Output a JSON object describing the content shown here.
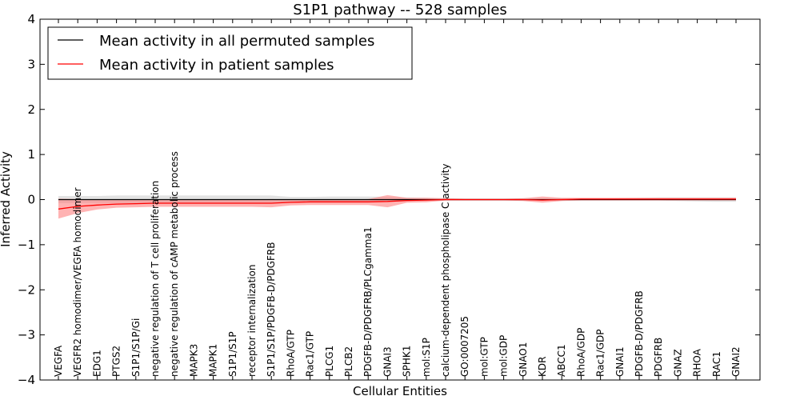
{
  "chart_data": {
    "type": "line",
    "title": "S1P1 pathway -- 528 samples",
    "xlabel": "Cellular Entities",
    "ylabel": "Inferred Activity",
    "ylim": [
      -4,
      4
    ],
    "yticks": [
      -4,
      -3,
      -2,
      -1,
      0,
      1,
      2,
      3,
      4
    ],
    "ytick_labels": [
      "−4",
      "−3",
      "−2",
      "−1",
      "0",
      "1",
      "2",
      "3",
      "4"
    ],
    "grid": false,
    "legend_position": "top-left",
    "categories": [
      "VEGFA",
      "VEGFR2 homodimer/VEGFA homodimer",
      "EDG1",
      "PTGS2",
      "S1P1/S1P/Gi",
      "negative regulation of T cell proliferation",
      "negative regulation of cAMP metabolic process",
      "MAPK3",
      "MAPK1",
      "S1P1/S1P",
      "receptor internalization",
      "S1P1/S1P/PDGFB-D/PDGFRB",
      "RhoA/GTP",
      "Rac1/GTP",
      "PLCG1",
      "PLCB2",
      "PDGFB-D/PDGFRB/PLCgamma1",
      "GNAI3",
      "SPHK1",
      "mol:S1P",
      "calcium-dependent phospholipase C activity",
      "GO:0007205",
      "mol:GTP",
      "mol:GDP",
      "GNAO1",
      "KDR",
      "ABCC1",
      "RhoA/GDP",
      "Rac1/GDP",
      "GNAI1",
      "PDGFB-D/PDGFRB",
      "PDGFRB",
      "GNAZ",
      "RHOA",
      "RAC1",
      "GNAI2"
    ],
    "series": [
      {
        "name": "Mean activity in all permuted samples",
        "color": "#000000",
        "band_color": "#bfbfbf",
        "values": [
          0,
          0,
          0,
          0,
          0,
          0,
          0,
          0,
          0,
          0,
          0,
          0,
          0,
          0,
          0,
          0,
          0,
          0,
          0,
          0,
          0,
          0,
          0,
          0,
          0,
          0,
          0,
          0,
          0,
          0,
          0,
          0,
          0,
          0,
          0,
          0
        ],
        "band_low": [
          -0.08,
          -0.08,
          -0.08,
          -0.08,
          -0.08,
          -0.08,
          -0.08,
          -0.08,
          -0.08,
          -0.08,
          -0.08,
          -0.08,
          -0.07,
          -0.07,
          -0.07,
          -0.07,
          -0.07,
          -0.05,
          -0.04,
          -0.03,
          -0.02,
          -0.02,
          -0.02,
          -0.02,
          -0.02,
          -0.02,
          -0.02,
          -0.02,
          -0.02,
          -0.02,
          -0.02,
          -0.02,
          -0.03,
          -0.04,
          -0.05,
          -0.05
        ],
        "band_high": [
          0.08,
          0.08,
          0.08,
          0.09,
          0.09,
          0.09,
          0.09,
          0.09,
          0.09,
          0.09,
          0.09,
          0.09,
          0.06,
          0.06,
          0.07,
          0.07,
          0.07,
          0.06,
          0.05,
          0.04,
          0.02,
          0.02,
          0.02,
          0.02,
          0.02,
          0.02,
          0.02,
          0.02,
          0.02,
          0.03,
          0.04,
          0.05,
          0.05,
          0.05,
          0.05,
          0.05
        ]
      },
      {
        "name": "Mean activity in patient samples",
        "color": "#ff0000",
        "band_color": "#ff8080",
        "values": [
          -0.21,
          -0.15,
          -0.12,
          -0.1,
          -0.09,
          -0.08,
          -0.08,
          -0.08,
          -0.08,
          -0.08,
          -0.08,
          -0.08,
          -0.06,
          -0.05,
          -0.05,
          -0.05,
          -0.05,
          -0.04,
          -0.02,
          -0.01,
          0.0,
          0.0,
          0.0,
          0.0,
          0.0,
          -0.01,
          0.0,
          0.01,
          0.01,
          0.01,
          0.01,
          0.01,
          0.01,
          0.01,
          0.01,
          0.01
        ],
        "band_low": [
          -0.42,
          -0.3,
          -0.22,
          -0.18,
          -0.17,
          -0.16,
          -0.16,
          -0.16,
          -0.16,
          -0.16,
          -0.16,
          -0.17,
          -0.13,
          -0.12,
          -0.12,
          -0.12,
          -0.12,
          -0.17,
          -0.07,
          -0.06,
          -0.02,
          -0.02,
          -0.02,
          -0.02,
          -0.03,
          -0.07,
          -0.03,
          -0.02,
          -0.02,
          -0.02,
          -0.02,
          -0.02,
          -0.02,
          -0.02,
          -0.02,
          -0.02
        ],
        "band_high": [
          0.02,
          0.01,
          0.0,
          0.0,
          0.0,
          0.0,
          0.0,
          0.0,
          0.0,
          0.0,
          0.0,
          0.01,
          0.0,
          0.0,
          0.0,
          0.0,
          0.01,
          0.1,
          0.04,
          0.04,
          0.03,
          0.02,
          0.02,
          0.02,
          0.03,
          0.07,
          0.04,
          0.04,
          0.04,
          0.04,
          0.04,
          0.04,
          0.04,
          0.04,
          0.04,
          0.04
        ]
      }
    ],
    "legend": [
      "Mean activity in all permuted samples",
      "Mean activity in patient samples"
    ]
  }
}
